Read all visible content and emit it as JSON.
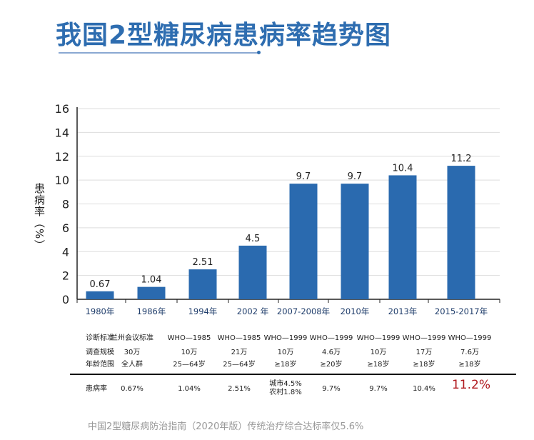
{
  "title": "我国2型糖尿病患病率趋势图",
  "chart_data": {
    "type": "bar",
    "title": "我国2型糖尿病患病率趋势图",
    "ylabel": "患病率（%）",
    "xlabel": "",
    "ylim": [
      0,
      16
    ],
    "yticks": [
      "0",
      "2",
      "4",
      "6",
      "8",
      "10",
      "12",
      "14",
      "16"
    ],
    "grid": true,
    "categories": [
      "1980年",
      "1986年",
      "1994年",
      "2002 年",
      "2007-2008年",
      "2010年",
      "2013年",
      "2015-2017年"
    ],
    "values": [
      0.67,
      1.04,
      2.51,
      4.5,
      9.7,
      9.7,
      10.4,
      11.2
    ],
    "labels": [
      "0.67",
      "1.04",
      "2.51",
      "4.5",
      "9.7",
      "9.7",
      "10.4",
      "11.2"
    ],
    "color": "#2a6aaf"
  },
  "table": {
    "rows": [
      {
        "label": "诊断标准",
        "cells": [
          "兰州会议标准",
          "WHO—1985",
          "WHO—1985",
          "WHO—1999",
          "WHO—1999",
          "WHO—1999",
          "WHO—1999",
          "WHO—1999"
        ]
      },
      {
        "label": "调查规模",
        "cells": [
          "30万",
          "10万",
          "21万",
          "10万",
          "4.6万",
          "10万",
          "17万",
          "7.6万"
        ]
      },
      {
        "label": "年龄范围",
        "cells": [
          "全人群",
          "25—64岁",
          "25—64岁",
          "≥18岁",
          "≥20岁",
          "≥18岁",
          "≥18岁",
          "≥18岁"
        ]
      }
    ],
    "rate": {
      "label": "患病率",
      "cells": [
        "0.67%",
        "1.04%",
        "2.51%",
        "城市4.5%",
        "9.7%",
        "9.7%",
        "10.4%",
        "11.2%"
      ],
      "extra": "农村1.8%"
    }
  },
  "footer": "中国2型糖尿病防治指南（2020年版）传统治疗综合达标率仅5.6%"
}
